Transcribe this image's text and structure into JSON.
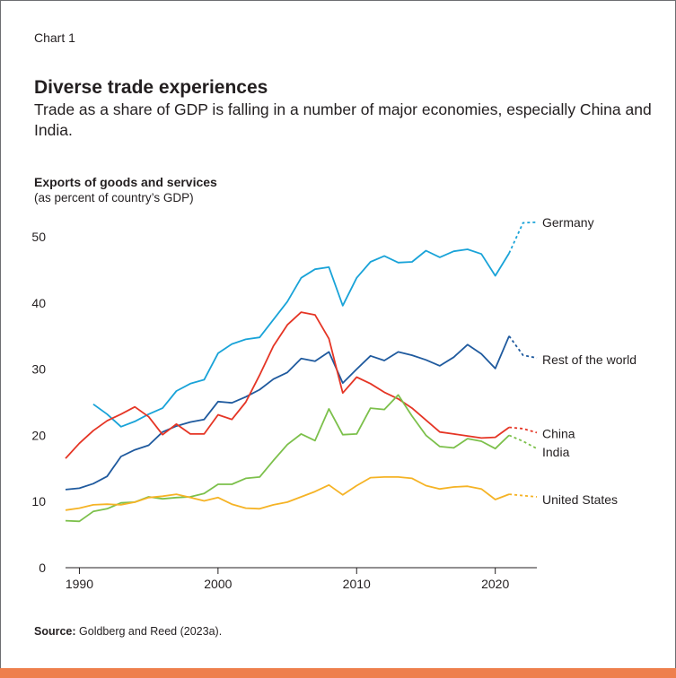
{
  "header": {
    "chart_label": "Chart 1",
    "title": "Diverse trade experiences",
    "subtitle": "Trade as a share of GDP is falling in a number of major economies, especially China and India."
  },
  "footer": {
    "source_label": "Source:",
    "source_text": "Goldberg and Reed (2023a)."
  },
  "colors": {
    "Germany": "#19a3d8",
    "Rest of the world": "#1f5a9e",
    "China": "#e53525",
    "India": "#7cc04b",
    "United States": "#f5b325",
    "axis": "#231f20",
    "accent_bar": "#ee7f4d"
  },
  "chart_data": {
    "type": "line",
    "ylabel": "Exports of goods and services",
    "ylabel_sub": "(as percent of country’s GDP)",
    "ylim": [
      0,
      50
    ],
    "xlim": [
      1989,
      2023
    ],
    "yticks": [
      0,
      10,
      20,
      30,
      40,
      50
    ],
    "xticks": [
      1990,
      2000,
      2010,
      2020
    ],
    "grid": false,
    "legend": "inline labels at line ends (right)",
    "series": [
      {
        "name": "Germany",
        "x": [
          1991,
          1992,
          1993,
          1994,
          1995,
          1996,
          1997,
          1998,
          1999,
          2000,
          2001,
          2002,
          2003,
          2004,
          2005,
          2006,
          2007,
          2008,
          2009,
          2010,
          2011,
          2012,
          2013,
          2014,
          2015,
          2016,
          2017,
          2018,
          2019,
          2020,
          2021
        ],
        "y": [
          24.7,
          23.2,
          21.3,
          22.1,
          23.2,
          24.1,
          26.7,
          27.8,
          28.4,
          32.4,
          33.8,
          34.5,
          34.8,
          37.5,
          40.2,
          43.8,
          45.1,
          45.4,
          39.6,
          43.8,
          46.2,
          47.1,
          46.1,
          46.2,
          47.9,
          46.9,
          47.8,
          48.1,
          47.4,
          44.1,
          47.5
        ],
        "projected_x": [
          2021,
          2022,
          2023
        ],
        "projected_y": [
          47.5,
          52.1,
          52.2
        ]
      },
      {
        "name": "Rest of the world",
        "x": [
          1989,
          1990,
          1991,
          1992,
          1993,
          1994,
          1995,
          1996,
          1997,
          1998,
          1999,
          2000,
          2001,
          2002,
          2003,
          2004,
          2005,
          2006,
          2007,
          2008,
          2009,
          2010,
          2011,
          2012,
          2013,
          2014,
          2015,
          2016,
          2017,
          2018,
          2019,
          2020,
          2021
        ],
        "y": [
          11.8,
          12.0,
          12.7,
          13.8,
          16.8,
          17.8,
          18.5,
          20.5,
          21.4,
          22.0,
          22.4,
          25.1,
          24.9,
          25.8,
          26.9,
          28.5,
          29.5,
          31.6,
          31.2,
          32.6,
          27.9,
          30.0,
          32.0,
          31.3,
          32.6,
          32.1,
          31.4,
          30.5,
          31.8,
          33.7,
          32.3,
          30.1,
          35.0
        ],
        "projected_x": [
          2021,
          2022,
          2023
        ],
        "projected_y": [
          35.0,
          32.1,
          31.7
        ]
      },
      {
        "name": "China",
        "x": [
          1989,
          1990,
          1991,
          1992,
          1993,
          1994,
          1995,
          1996,
          1997,
          1998,
          1999,
          2000,
          2001,
          2002,
          2003,
          2004,
          2005,
          2006,
          2007,
          2008,
          2009,
          2010,
          2011,
          2012,
          2013,
          2014,
          2015,
          2016,
          2017,
          2018,
          2019,
          2020,
          2021
        ],
        "y": [
          16.5,
          18.8,
          20.7,
          22.2,
          23.2,
          24.3,
          22.8,
          20.1,
          21.7,
          20.2,
          20.2,
          23.1,
          22.4,
          25.0,
          29.1,
          33.5,
          36.7,
          38.6,
          38.2,
          34.6,
          26.4,
          28.8,
          27.8,
          26.5,
          25.5,
          24.1,
          22.3,
          20.5,
          20.2,
          19.9,
          19.6,
          19.7,
          21.2
        ],
        "projected_x": [
          2021,
          2022,
          2023
        ],
        "projected_y": [
          21.2,
          21.0,
          20.4
        ]
      },
      {
        "name": "India",
        "x": [
          1989,
          1990,
          1991,
          1992,
          1993,
          1994,
          1995,
          1996,
          1997,
          1998,
          1999,
          2000,
          2001,
          2002,
          2003,
          2004,
          2005,
          2006,
          2007,
          2008,
          2009,
          2010,
          2011,
          2012,
          2013,
          2014,
          2015,
          2016,
          2017,
          2018,
          2019,
          2020,
          2021
        ],
        "y": [
          7.1,
          7.0,
          8.5,
          8.9,
          9.8,
          9.9,
          10.7,
          10.4,
          10.6,
          10.7,
          11.2,
          12.6,
          12.6,
          13.5,
          13.7,
          16.2,
          18.6,
          20.2,
          19.2,
          24.0,
          20.1,
          20.2,
          24.1,
          23.9,
          26.1,
          22.9,
          20.0,
          18.3,
          18.1,
          19.5,
          19.1,
          18.0,
          20.0
        ],
        "projected_x": [
          2021,
          2022,
          2023
        ],
        "projected_y": [
          20.0,
          19.1,
          18.0
        ]
      },
      {
        "name": "United States",
        "x": [
          1989,
          1990,
          1991,
          1992,
          1993,
          1994,
          1995,
          1996,
          1997,
          1998,
          1999,
          2000,
          2001,
          2002,
          2003,
          2004,
          2005,
          2006,
          2007,
          2008,
          2009,
          2010,
          2011,
          2012,
          2013,
          2014,
          2015,
          2016,
          2017,
          2018,
          2019,
          2020,
          2021
        ],
        "y": [
          8.7,
          9.0,
          9.5,
          9.6,
          9.5,
          9.9,
          10.6,
          10.8,
          11.1,
          10.6,
          10.1,
          10.6,
          9.6,
          9.0,
          8.9,
          9.5,
          9.9,
          10.7,
          11.5,
          12.5,
          11.0,
          12.4,
          13.6,
          13.7,
          13.7,
          13.5,
          12.4,
          11.9,
          12.2,
          12.3,
          11.9,
          10.3,
          11.1
        ],
        "projected_x": [
          2021,
          2022,
          2023
        ],
        "projected_y": [
          11.1,
          10.9,
          10.7
        ]
      }
    ]
  }
}
